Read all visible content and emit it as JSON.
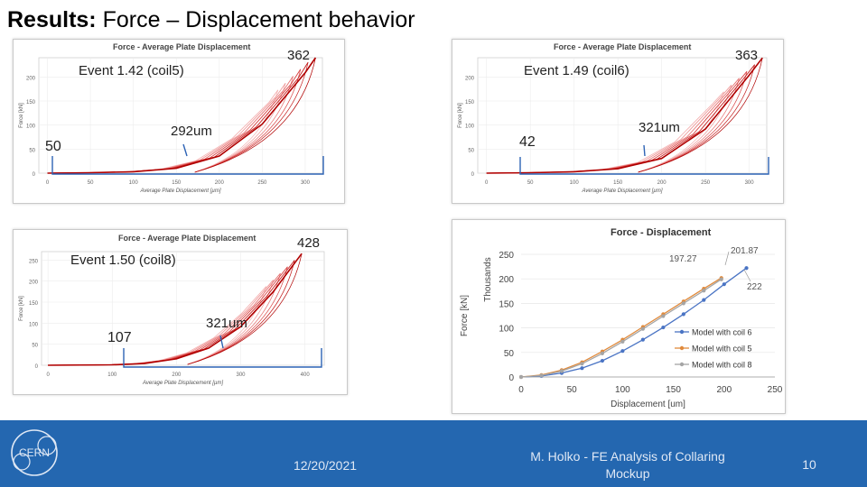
{
  "slide": {
    "title_bold": "Results:",
    "title_rest": " Force – Displacement behavior",
    "date": "12/20/2021",
    "author_line1": "M. Holko - FE Analysis of Collaring",
    "author_line2": "Mockup",
    "page_number": "10",
    "logo_text": "CERN",
    "footer_color": "#2467b0"
  },
  "panels": [
    {
      "plot_title": "Force - Average Plate Displacement",
      "event": "Event 1.42 (coil5)",
      "peak_label": "362",
      "left_label": "50",
      "disp_label": "292um",
      "xlabel": "Average Plate Displacement [µm]",
      "ylabel": "Force [kN]"
    },
    {
      "plot_title": "Force - Average Plate Displacement",
      "event": "Event 1.49 (coil6)",
      "peak_label": "363",
      "left_label": "42",
      "disp_label": "321um",
      "xlabel": "Average Plate Displacement [µm]",
      "ylabel": "Force [kN]"
    },
    {
      "plot_title": "Force - Average Plate Displacement",
      "event": "Event 1.50 (coil8)",
      "peak_label": "428",
      "left_label": "107",
      "disp_label": "321um",
      "xlabel": "Average Plate Displacement [µm]",
      "ylabel": "Force [kN]"
    }
  ],
  "chart_data": [
    {
      "type": "line",
      "title": "Force - Average Plate Displacement",
      "xlabel": "Average Plate Displacement [µm]",
      "ylabel": "Force [kN]",
      "xticks": [
        0,
        50,
        100,
        150,
        200,
        250,
        300
      ],
      "yticks": [
        0,
        50,
        100,
        150,
        200
      ],
      "xlim": [
        -10,
        320
      ],
      "ylim": [
        0,
        240
      ],
      "series": [
        {
          "name": "Event 1.42 (coil5)",
          "x": [
            0,
            50,
            100,
            150,
            200,
            250,
            300,
            312
          ],
          "y": [
            0,
            1,
            3,
            10,
            35,
            100,
            205,
            240
          ]
        }
      ]
    },
    {
      "type": "line",
      "title": "Force - Average Plate Displacement",
      "xlabel": "Average Plate Displacement [µm]",
      "ylabel": "Force [kN]",
      "xticks": [
        0,
        50,
        100,
        150,
        200,
        250,
        300
      ],
      "yticks": [
        0,
        50,
        100,
        150,
        200
      ],
      "xlim": [
        -10,
        320
      ],
      "ylim": [
        0,
        240
      ],
      "series": [
        {
          "name": "Event 1.49 (coil6)",
          "x": [
            0,
            50,
            100,
            150,
            200,
            250,
            300,
            315
          ],
          "y": [
            0,
            1,
            3,
            9,
            30,
            90,
            200,
            235
          ]
        }
      ]
    },
    {
      "type": "line",
      "title": "Force - Average Plate Displacement",
      "xlabel": "Average Plate Displacement [µm]",
      "ylabel": "Force [kN]",
      "xticks": [
        0,
        100,
        200,
        300,
        400
      ],
      "yticks": [
        0,
        50,
        100,
        150,
        200,
        250
      ],
      "xlim": [
        -10,
        430
      ],
      "ylim": [
        0,
        270
      ],
      "series": [
        {
          "name": "Event 1.50 (coil8)",
          "x": [
            0,
            100,
            150,
            200,
            250,
            300,
            350,
            380,
            395
          ],
          "y": [
            0,
            1,
            4,
            15,
            40,
            90,
            170,
            230,
            260
          ]
        }
      ]
    },
    {
      "type": "line",
      "title": "Force - Displacement",
      "xlabel": "Displacement [um]",
      "ylabel": "Force [kN]",
      "ylabel_secondary": "Thousands",
      "xticks": [
        0,
        50,
        100,
        150,
        200,
        250
      ],
      "yticks": [
        0,
        50,
        100,
        150,
        200,
        250
      ],
      "xlim": [
        0,
        250
      ],
      "ylim": [
        0,
        250
      ],
      "annotations": [
        "201.87",
        "197.27",
        "222"
      ],
      "series": [
        {
          "name": "Model with coil 6",
          "color": "#4a74c4",
          "x": [
            0,
            20,
            40,
            60,
            80,
            100,
            120,
            140,
            160,
            180,
            200,
            222
          ],
          "y": [
            0,
            2,
            8,
            18,
            33,
            53,
            76,
            101,
            128,
            157,
            189,
            222
          ]
        },
        {
          "name": "Model with coil 5",
          "color": "#e08a3c",
          "x": [
            0,
            20,
            40,
            60,
            80,
            100,
            120,
            140,
            160,
            180,
            197.27
          ],
          "y": [
            0,
            4,
            14,
            30,
            52,
            76,
            102,
            128,
            154,
            180,
            201.87
          ]
        },
        {
          "name": "Model with coil 8",
          "color": "#a5a5a5",
          "x": [
            0,
            20,
            40,
            60,
            80,
            100,
            120,
            140,
            160,
            180,
            197.27
          ],
          "y": [
            0,
            3,
            12,
            27,
            48,
            72,
            98,
            124,
            150,
            176,
            199
          ]
        }
      ]
    }
  ]
}
